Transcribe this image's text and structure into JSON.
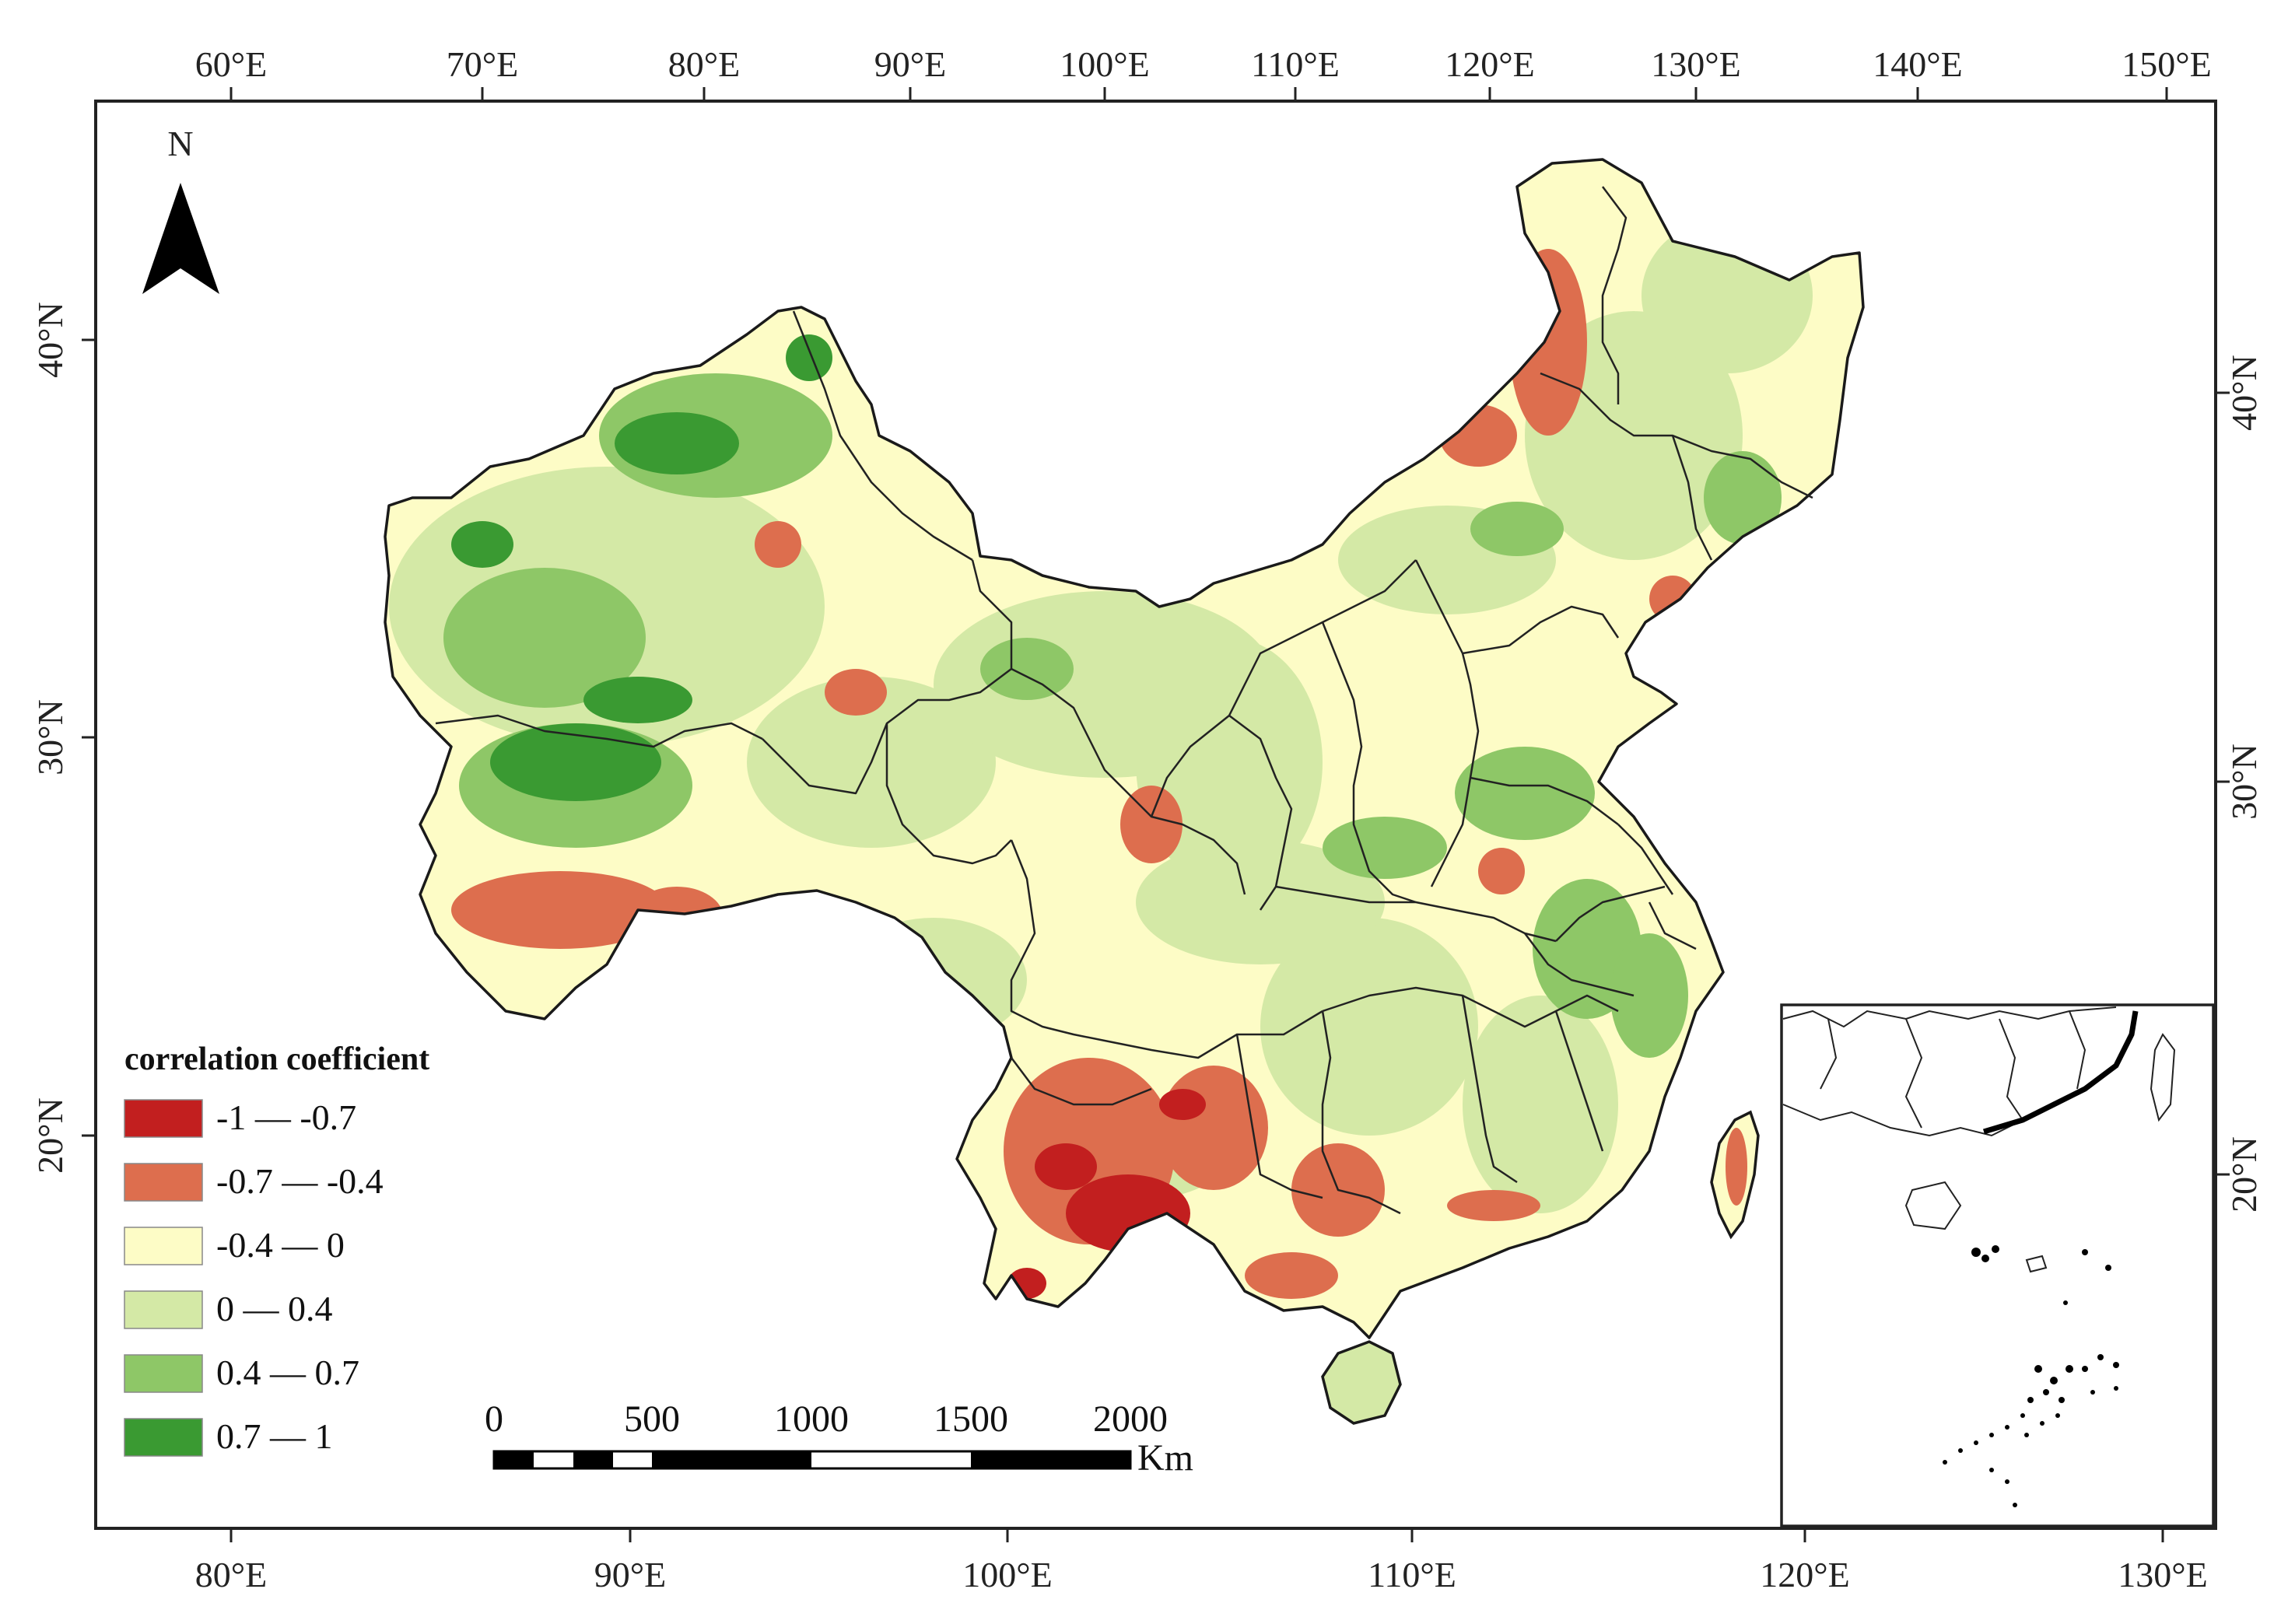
{
  "north_arrow": {
    "label": "N"
  },
  "lon_labels_top": [
    "60°E",
    "70°E",
    "80°E",
    "90°E",
    "100°E",
    "110°E",
    "120°E",
    "130°E",
    "140°E",
    "150°E"
  ],
  "lon_labels_bottom": [
    "80°E",
    "90°E",
    "100°E",
    "110°E",
    "120°E",
    "130°E"
  ],
  "lat_labels_left": [
    "40°N",
    "30°N",
    "20°N"
  ],
  "lat_labels_right": [
    "40°N",
    "30°N",
    "20°N"
  ],
  "legend": {
    "title": "correlation coefficient",
    "items": [
      {
        "label": "-1 — -0.7",
        "color": "#c21f1f"
      },
      {
        "label": "-0.7 — -0.4",
        "color": "#dd6e4e"
      },
      {
        "label": "-0.4 — 0",
        "color": "#fdfcc6"
      },
      {
        "label": "0 — 0.4",
        "color": "#d4e9a6"
      },
      {
        "label": "0.4 — 0.7",
        "color": "#8ec767"
      },
      {
        "label": "0.7 — 1",
        "color": "#3a9a32"
      }
    ]
  },
  "scale_bar": {
    "ticks": [
      "0",
      "500",
      "1000",
      "1500",
      "2000"
    ],
    "unit": "Km"
  }
}
